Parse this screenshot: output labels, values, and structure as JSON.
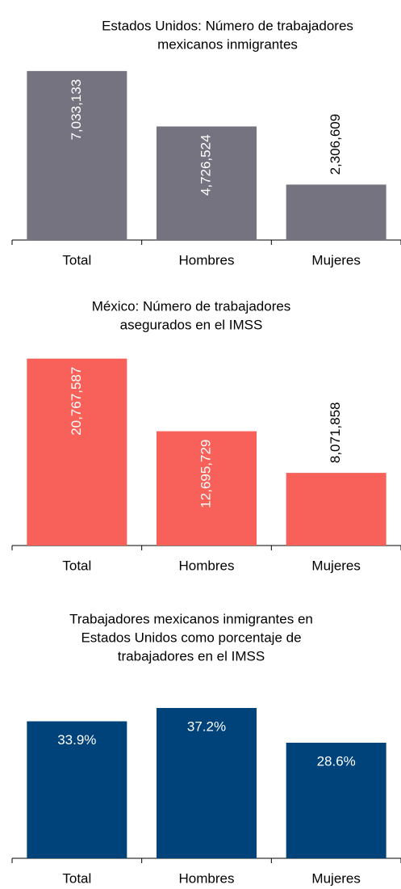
{
  "chart_data": [
    {
      "type": "bar",
      "title": [
        "Estados Unidos: Número de trabajadores",
        "mexicanos inmigrantes"
      ],
      "categories": [
        "Total",
        "Hombres",
        "Mujeres"
      ],
      "values": [
        7033133,
        4726524,
        2306609
      ],
      "value_labels": [
        "7,033,133",
        "4,726,524",
        "2,306,609"
      ],
      "label_rotation": -90,
      "color": "#75737f",
      "ylim": [
        0,
        7500000
      ]
    },
    {
      "type": "bar",
      "title": [
        "México: Número de trabajadores",
        "asegurados en el IMSS"
      ],
      "categories": [
        "Total",
        "Hombres",
        "Mujeres"
      ],
      "values": [
        20767587,
        12695729,
        8071858
      ],
      "value_labels": [
        "20,767,587",
        "12,695,729",
        "8,071,858"
      ],
      "label_rotation": -90,
      "color": "#f8615a",
      "ylim": [
        0,
        22000000
      ]
    },
    {
      "type": "bar",
      "title": [
        "Trabajadores mexicanos inmigrantes en",
        "Estados Unidos como porcentaje de",
        "trabajadores en el IMSS"
      ],
      "categories": [
        "Total",
        "Hombres",
        "Mujeres"
      ],
      "values": [
        33.9,
        37.2,
        28.6
      ],
      "value_labels": [
        "33.9%",
        "37.2%",
        "28.6%"
      ],
      "label_rotation": 0,
      "color": "#00427a",
      "ylim": [
        0,
        40
      ]
    }
  ]
}
